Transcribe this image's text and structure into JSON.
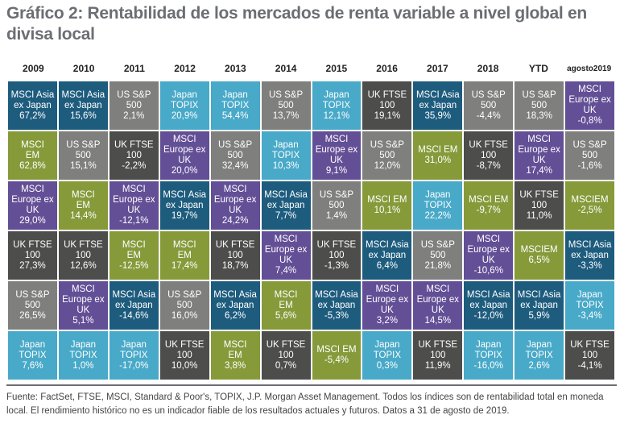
{
  "chart_data": {
    "type": "table",
    "title": "Gráfico 2: Rentabilidad de los mercados de renta variable a nivel global en divisa local",
    "columns": [
      "2009",
      "2010",
      "2011",
      "2012",
      "2013",
      "2014",
      "2015",
      "2016",
      "2017",
      "2018",
      "YTD",
      "agosto 2019"
    ],
    "legend": {
      "MSCI Asia ex Japan": "#1e5c7e",
      "MSCI EM": "#869a3a",
      "US S&P 500": "#7f7f7d",
      "Japan TOPIX": "#48a9c8",
      "UK FTSE 100": "#4d4e4c",
      "MSCI Europe ex UK": "#634f96"
    },
    "ranks": [
      [
        {
          "index": "MSCI Asia ex Japan",
          "label": "MSCI Asia\nex Japan",
          "value": "67,2%",
          "num": 67.2
        },
        {
          "index": "MSCI Asia ex Japan",
          "label": "MSCI Asia\nex Japan",
          "value": "15,6%",
          "num": 15.6
        },
        {
          "index": "US S&P 500",
          "label": "US S&P\n500",
          "value": "2,1%",
          "num": 2.1
        },
        {
          "index": "Japan TOPIX",
          "label": "Japan\nTOPIX",
          "value": "20,9%",
          "num": 20.9
        },
        {
          "index": "Japan TOPIX",
          "label": "Japan\nTOPIX",
          "value": "54,4%",
          "num": 54.4
        },
        {
          "index": "US S&P 500",
          "label": "US S&P\n500",
          "value": "13,7%",
          "num": 13.7
        },
        {
          "index": "Japan TOPIX",
          "label": "Japan\nTOPIX",
          "value": "12,1%",
          "num": 12.1
        },
        {
          "index": "UK FTSE 100",
          "label": "UK FTSE\n100",
          "value": "19,1%",
          "num": 19.1
        },
        {
          "index": "MSCI Asia ex Japan",
          "label": "MSCI Asia\nex Japan",
          "value": "35,9%",
          "num": 35.9
        },
        {
          "index": "US S&P 500",
          "label": "US S&P\n500",
          "value": "-4,4%",
          "num": -4.4
        },
        {
          "index": "US S&P 500",
          "label": "US S&P\n500",
          "value": "18,3%",
          "num": 18.3
        },
        {
          "index": "MSCI Europe ex UK",
          "label": "MSCI\nEurope ex\nUK",
          "value": "-0,8%",
          "num": -0.8
        }
      ],
      [
        {
          "index": "MSCI EM",
          "label": "MSCI\nEM",
          "value": "62,8%",
          "num": 62.8
        },
        {
          "index": "US S&P 500",
          "label": "US S&P\n500",
          "value": "15,1%",
          "num": 15.1
        },
        {
          "index": "UK FTSE 100",
          "label": "UK FTSE\n100",
          "value": "-2,2%",
          "num": -2.2
        },
        {
          "index": "MSCI Europe ex UK",
          "label": "MSCI\nEurope ex\nUK",
          "value": "20,0%",
          "num": 20.0
        },
        {
          "index": "US S&P 500",
          "label": "US S&P\n500",
          "value": "32,4%",
          "num": 32.4
        },
        {
          "index": "Japan TOPIX",
          "label": "Japan\nTOPIX",
          "value": "10,3%",
          "num": 10.3
        },
        {
          "index": "MSCI Europe ex UK",
          "label": "MSCI\nEurope ex\nUK",
          "value": "9,1%",
          "num": 9.1
        },
        {
          "index": "US S&P 500",
          "label": "US S&P\n500",
          "value": "12,0%",
          "num": 12.0
        },
        {
          "index": "MSCI EM",
          "label": "MSCI EM",
          "value": "31,0%",
          "num": 31.0
        },
        {
          "index": "UK FTSE 100",
          "label": "UK FTSE\n100",
          "value": "-8,7%",
          "num": -8.7
        },
        {
          "index": "MSCI Europe ex UK",
          "label": "MSCI\nEurope ex\nUK",
          "value": "17,4%",
          "num": 17.4
        },
        {
          "index": "US S&P 500",
          "label": "US S&P\n500",
          "value": "-1,6%",
          "num": -1.6
        }
      ],
      [
        {
          "index": "MSCI Europe ex UK",
          "label": "MSCI\nEurope ex\nUK",
          "value": "29,0%",
          "num": 29.0
        },
        {
          "index": "MSCI EM",
          "label": "MSCI\nEM",
          "value": "14,4%",
          "num": 14.4
        },
        {
          "index": "MSCI Europe ex UK",
          "label": "MSCI\nEurope ex\nUK",
          "value": "-12,1%",
          "num": -12.1
        },
        {
          "index": "MSCI Asia ex Japan",
          "label": "MSCI Asia\nex Japan",
          "value": "19,7%",
          "num": 19.7
        },
        {
          "index": "MSCI Europe ex UK",
          "label": "MSCI\nEurope ex\nUK",
          "value": "24,2%",
          "num": 24.2
        },
        {
          "index": "MSCI Asia ex Japan",
          "label": "MSCI Asia\nex Japan",
          "value": "7,7%",
          "num": 7.7
        },
        {
          "index": "US S&P 500",
          "label": "US S&P\n500",
          "value": "1,4%",
          "num": 1.4
        },
        {
          "index": "MSCI EM",
          "label": "MSCI EM",
          "value": "10,1%",
          "num": 10.1
        },
        {
          "index": "Japan TOPIX",
          "label": "Japan\nTOPIX",
          "value": "22,2%",
          "num": 22.2
        },
        {
          "index": "MSCI EM",
          "label": "MSCI EM",
          "value": "-9,7%",
          "num": -9.7
        },
        {
          "index": "UK FTSE 100",
          "label": "UK FTSE\n100",
          "value": "11,0%",
          "num": 11.0
        },
        {
          "index": "MSCI EM",
          "label": "MSCIEM",
          "value": "-2,5%",
          "num": -2.5
        }
      ],
      [
        {
          "index": "UK FTSE 100",
          "label": "UK FTSE\n100",
          "value": "27,3%",
          "num": 27.3
        },
        {
          "index": "UK FTSE 100",
          "label": "UK FTSE\n100",
          "value": "12,6%",
          "num": 12.6
        },
        {
          "index": "MSCI EM",
          "label": "MSCI\nEM",
          "value": "-12,5%",
          "num": -12.5
        },
        {
          "index": "MSCI EM",
          "label": "MSCI\nEM",
          "value": "17,4%",
          "num": 17.4
        },
        {
          "index": "UK FTSE 100",
          "label": "UK FTSE\n100",
          "value": "18,7%",
          "num": 18.7
        },
        {
          "index": "MSCI Europe ex UK",
          "label": "MSCI\nEurope ex\nUK",
          "value": "7,4%",
          "num": 7.4
        },
        {
          "index": "UK FTSE 100",
          "label": "UK FTSE\n100",
          "value": "-1,3%",
          "num": -1.3
        },
        {
          "index": "MSCI Asia ex Japan",
          "label": "MSCI Asia\nex Japan",
          "value": "6,4%",
          "num": 6.4
        },
        {
          "index": "US S&P 500",
          "label": "US S&P\n500",
          "value": "21,8%",
          "num": 21.8
        },
        {
          "index": "MSCI Europe ex UK",
          "label": "MSCI\nEurope ex\nUK",
          "value": "-10,6%",
          "num": -10.6
        },
        {
          "index": "MSCI EM",
          "label": "MSCIEM",
          "value": "6,5%",
          "num": 6.5
        },
        {
          "index": "MSCI Asia ex Japan",
          "label": "MSCI Asia\nex Japan",
          "value": "-3,3%",
          "num": -3.3
        }
      ],
      [
        {
          "index": "US S&P 500",
          "label": "US S&P\n500",
          "value": "26,5%",
          "num": 26.5
        },
        {
          "index": "MSCI Europe ex UK",
          "label": "MSCI\nEurope ex\nUK",
          "value": "5,1%",
          "num": 5.1
        },
        {
          "index": "MSCI Asia ex Japan",
          "label": "MSCI Asia\nex Japan",
          "value": "-14,6%",
          "num": -14.6
        },
        {
          "index": "US S&P 500",
          "label": "US S&P\n500",
          "value": "16,0%",
          "num": 16.0
        },
        {
          "index": "MSCI Asia ex Japan",
          "label": "MSCI Asia\nex Japan",
          "value": "6,2%",
          "num": 6.2
        },
        {
          "index": "MSCI EM",
          "label": "MSCI\nEM",
          "value": "5,6%",
          "num": 5.6
        },
        {
          "index": "MSCI Asia ex Japan",
          "label": "MSCI Asia\nex Japan",
          "value": "-5,3%",
          "num": -5.3
        },
        {
          "index": "MSCI Europe ex UK",
          "label": "MSCI\nEurope ex\nUK",
          "value": "3,2%",
          "num": 3.2
        },
        {
          "index": "MSCI Europe ex UK",
          "label": "MSCI\nEurope ex\nUK",
          "value": "14,5%",
          "num": 14.5
        },
        {
          "index": "MSCI Asia ex Japan",
          "label": "MSCI Asia\nex Japan",
          "value": "-12,0%",
          "num": -12.0
        },
        {
          "index": "MSCI Asia ex Japan",
          "label": "MSCI Asia\nex Japan",
          "value": "5,9%",
          "num": 5.9
        },
        {
          "index": "Japan TOPIX",
          "label": "Japan\nTOPIX",
          "value": "-3,4%",
          "num": -3.4
        }
      ],
      [
        {
          "index": "Japan TOPIX",
          "label": "Japan\nTOPIX",
          "value": "7,6%",
          "num": 7.6
        },
        {
          "index": "Japan TOPIX",
          "label": "Japan\nTOPIX",
          "value": "1,0%",
          "num": 1.0
        },
        {
          "index": "Japan TOPIX",
          "label": "Japan\nTOPIX",
          "value": "-17,0%",
          "num": -17.0
        },
        {
          "index": "UK FTSE 100",
          "label": "UK FTSE\n100",
          "value": "10,0%",
          "num": 10.0
        },
        {
          "index": "MSCI EM",
          "label": "MSCI\nEM",
          "value": "3,8%",
          "num": 3.8
        },
        {
          "index": "UK FTSE 100",
          "label": "UK FTSE\n100",
          "value": "0,7%",
          "num": 0.7
        },
        {
          "index": "MSCI EM",
          "label": "MSCI EM",
          "value": "-5,4%",
          "num": -5.4
        },
        {
          "index": "Japan TOPIX",
          "label": "Japan\nTOPIX",
          "value": "0,3%",
          "num": 0.3
        },
        {
          "index": "UK FTSE 100",
          "label": "UK FTSE\n100",
          "value": "11,9%",
          "num": 11.9
        },
        {
          "index": "Japan TOPIX",
          "label": "Japan\nTOPIX",
          "value": "-16,0%",
          "num": -16.0
        },
        {
          "index": "Japan TOPIX",
          "label": "Japan\nTOPIX",
          "value": "2,6%",
          "num": 2.6
        },
        {
          "index": "UK FTSE 100",
          "label": "UK FTSE\n100",
          "value": "-4,1%",
          "num": -4.1
        }
      ]
    ]
  },
  "page": {
    "title": "Gráfico 2: Rentabilidad de los mercados de renta variable a nivel global en divisa local",
    "footer": "Fuente: FactSet, FTSE, MSCI, Standard & Poor's, TOPIX, J.P. Morgan Asset Management. Todos los índices son de rentabilidad total en moneda local. El rendimiento histórico no es un indicador fiable de los resultados actuales y futuros. Datos a 31 de agosto de 2019."
  }
}
